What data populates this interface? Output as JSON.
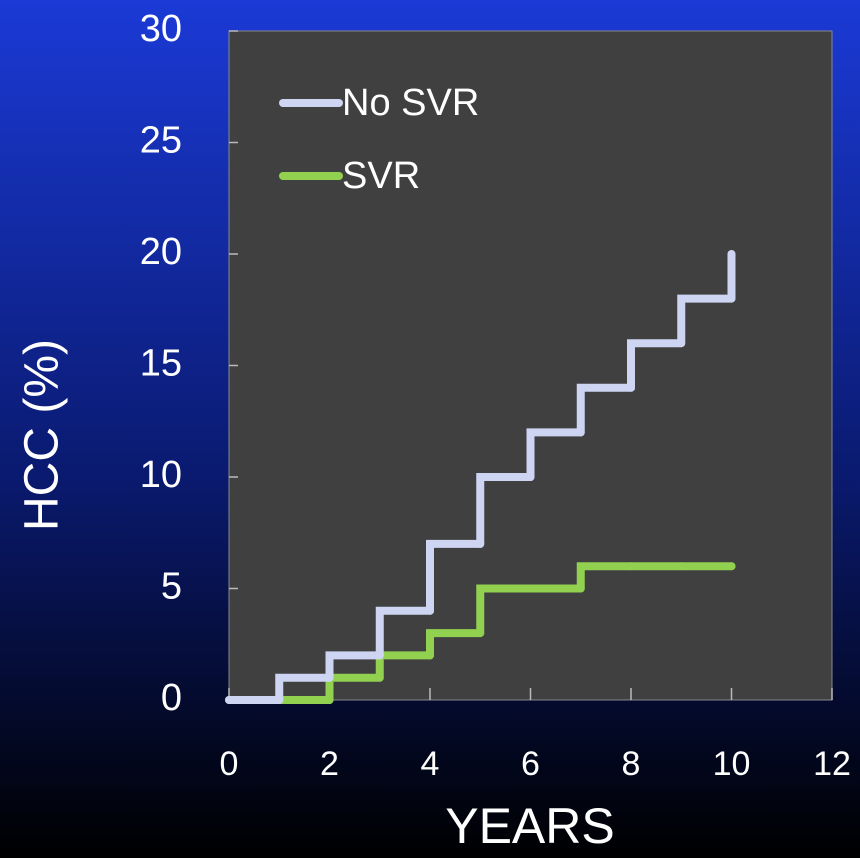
{
  "chart_data": {
    "type": "step",
    "x_label": "YEARS",
    "y_label": "HCC (%)",
    "x": [
      0,
      1,
      2,
      3,
      4,
      5,
      6,
      7,
      8,
      9,
      10
    ],
    "series": [
      {
        "name": "No SVR",
        "color": "#cdd5f3",
        "values": [
          0,
          1,
          2,
          4,
          7,
          10,
          12,
          14,
          16,
          18,
          20
        ]
      },
      {
        "name": "SVR",
        "color": "#92d050",
        "values": [
          0,
          0,
          1,
          2,
          3,
          5,
          5,
          6,
          6,
          6,
          6
        ]
      }
    ],
    "xlim": [
      0,
      12
    ],
    "xticks": [
      0,
      2,
      4,
      6,
      8,
      10,
      12
    ],
    "ylim": [
      0,
      30
    ],
    "yticks": [
      0,
      5,
      10,
      15,
      20,
      25,
      30
    ],
    "legend": "upper left"
  }
}
